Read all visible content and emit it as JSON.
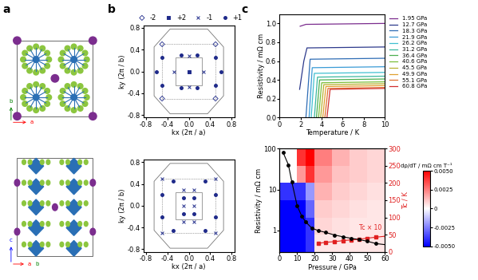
{
  "panel_labels": [
    "a",
    "b",
    "c"
  ],
  "structure": {
    "top_view_axes": [
      "a",
      "b"
    ],
    "side_view_axes": [
      "c",
      "a",
      "b"
    ]
  },
  "chart_data": [
    {
      "type": "scatter",
      "legend": "top",
      "x_label": "kx (2π / a)",
      "y_label": "ky (2π / b)",
      "xlim": [
        -0.85,
        0.85
      ],
      "ylim": [
        -0.85,
        0.85
      ],
      "xticks": [
        -0.8,
        -0.4,
        0.0,
        0.4,
        0.8
      ],
      "yticks": [
        -0.8,
        -0.4,
        0.0,
        0.4,
        0.8
      ],
      "series": [
        {
          "name": "-2",
          "marker": "diamond",
          "color": "#1f2a8a",
          "x": [
            -0.5,
            0.5,
            -0.5,
            0.5
          ],
          "y": [
            0.5,
            0.5,
            -0.5,
            -0.5
          ]
        },
        {
          "name": "+2",
          "marker": "square",
          "color": "#1f2a8a",
          "x": [
            0.0
          ],
          "y": [
            0.0
          ]
        },
        {
          "name": "-1",
          "marker": "cross",
          "color": "#1f2a8a",
          "x": [
            0.0,
            0.0,
            -0.28,
            0.28
          ],
          "y": [
            0.28,
            -0.28,
            0.0,
            0.0
          ]
        },
        {
          "name": "+1",
          "marker": "circle",
          "color": "#1f2a8a",
          "x": [
            -0.15,
            0.15,
            -0.15,
            0.15,
            -0.5,
            0.5,
            -0.5,
            0.5,
            -0.6,
            0.6
          ],
          "y": [
            0.3,
            0.3,
            -0.3,
            -0.3,
            0.25,
            0.25,
            -0.25,
            -0.25,
            0.0,
            0.0
          ]
        }
      ]
    },
    {
      "type": "scatter",
      "x_label": "kx (2π / a)",
      "y_label": "ky (2π / b)",
      "xlim": [
        -0.85,
        0.85
      ],
      "ylim": [
        -0.85,
        0.85
      ],
      "xticks": [
        -0.8,
        -0.4,
        0.0,
        0.4,
        0.8
      ],
      "yticks": [
        -0.8,
        -0.4,
        0.0,
        0.4,
        0.8
      ],
      "series": [
        {
          "marker": "cross",
          "color": "#1f2a8a",
          "x": [
            -0.5,
            0.5,
            -0.5,
            0.5,
            -0.1,
            0.1,
            -0.1,
            0.1,
            -0.1,
            0.1
          ],
          "y": [
            0.5,
            0.5,
            -0.5,
            -0.5,
            0.3,
            0.3,
            -0.3,
            -0.3,
            0.0,
            0.0
          ]
        },
        {
          "marker": "circle",
          "color": "#1f2a8a",
          "x": [
            -0.3,
            0.3,
            -0.3,
            0.3,
            -0.5,
            0.5,
            -0.5,
            0.5,
            -0.1,
            0.1,
            -0.1,
            0.1
          ],
          "y": [
            0.45,
            0.45,
            -0.45,
            -0.45,
            0.2,
            0.2,
            -0.2,
            -0.2,
            0.15,
            0.15,
            -0.15,
            -0.15
          ]
        }
      ]
    },
    {
      "type": "line",
      "legend": "right",
      "x_label": "Temperature / K",
      "y_label": "Resistivity / mΩ cm",
      "xlim": [
        0,
        10
      ],
      "ylim": [
        0,
        1.1
      ],
      "xticks": [
        0,
        2,
        4,
        6,
        8,
        10
      ],
      "yticks": [
        0.0,
        0.2,
        0.4,
        0.6,
        0.8,
        1.0
      ],
      "series": [
        {
          "name": "1.95 GPa",
          "color": "#7b2d8e",
          "x": [
            1.95,
            2.5,
            10
          ],
          "values": [
            0.97,
            0.99,
            1.0
          ]
        },
        {
          "name": "12.7 GPa",
          "color": "#2d3a8c",
          "x": [
            1.9,
            2.3,
            2.6,
            10
          ],
          "values": [
            0.3,
            0.6,
            0.74,
            0.75
          ]
        },
        {
          "name": "18.3 GPa",
          "color": "#2f6db5",
          "x": [
            2.5,
            2.9,
            10
          ],
          "values": [
            0.0,
            0.62,
            0.63
          ]
        },
        {
          "name": "21.9 GPa",
          "color": "#3a9bd6",
          "x": [
            2.8,
            3.1,
            10
          ],
          "values": [
            0.0,
            0.53,
            0.54
          ]
        },
        {
          "name": "26.2 GPa",
          "color": "#40c0d0",
          "x": [
            3.0,
            3.3,
            10
          ],
          "values": [
            0.0,
            0.47,
            0.48
          ]
        },
        {
          "name": "31.2 GPa",
          "color": "#3cb8a0",
          "x": [
            3.3,
            3.6,
            10
          ],
          "values": [
            0.0,
            0.43,
            0.44
          ]
        },
        {
          "name": "36.4 GPa",
          "color": "#4caf50",
          "x": [
            3.5,
            3.8,
            10
          ],
          "values": [
            0.0,
            0.4,
            0.41
          ]
        },
        {
          "name": "40.6 GPa",
          "color": "#7cbf3a",
          "x": [
            3.7,
            4.0,
            10
          ],
          "values": [
            0.0,
            0.37,
            0.38
          ]
        },
        {
          "name": "45.5 GPa",
          "color": "#b8b030",
          "x": [
            3.9,
            4.2,
            10
          ],
          "values": [
            0.0,
            0.35,
            0.36
          ]
        },
        {
          "name": "49.9 GPa",
          "color": "#e0a030",
          "x": [
            4.1,
            4.4,
            10
          ],
          "values": [
            0.0,
            0.33,
            0.34
          ]
        },
        {
          "name": "55.1 GPa",
          "color": "#e07030",
          "x": [
            4.3,
            4.6,
            10
          ],
          "values": [
            0.0,
            0.31,
            0.32
          ]
        },
        {
          "name": "60.8 GPa",
          "color": "#d03030",
          "x": [
            4.5,
            4.8,
            10
          ],
          "values": [
            0.0,
            0.3,
            0.31
          ]
        }
      ]
    },
    {
      "type": "line",
      "log": "y",
      "x_label": "Pressure / GPa",
      "y_label": "Resistivity / mΩ cm",
      "y2_label": "Tc / K",
      "annotation": "Tc × 10",
      "xlim": [
        0,
        60
      ],
      "ylim": [
        0.3,
        100
      ],
      "y2lim": [
        0,
        300
      ],
      "xticks": [
        0,
        10,
        20,
        30,
        40,
        50,
        60
      ],
      "yticks": [
        1,
        10,
        100
      ],
      "y2ticks": [
        0,
        50,
        100,
        150,
        200,
        250,
        300
      ],
      "series": [
        {
          "color": "#000000",
          "marker": "circle",
          "x": [
            1.95,
            5,
            7,
            10,
            12.7,
            15,
            18.3,
            21.9,
            26.2,
            31.2,
            36.4,
            40.6,
            45.5,
            49.9,
            55.1,
            60.8
          ],
          "values": [
            80,
            40,
            15,
            4,
            2.2,
            1.6,
            1.15,
            1.0,
            0.9,
            0.78,
            0.7,
            0.65,
            0.6,
            0.55,
            0.48,
            0.45
          ]
        },
        {
          "color": "#e02020",
          "marker": "square",
          "axis": "y2",
          "x": [
            21.9,
            26.2,
            31.2,
            36.4,
            40.6,
            45.5,
            49.9,
            55.1,
            60.8
          ],
          "values": [
            25,
            28,
            30,
            33,
            35,
            37,
            40,
            43,
            46
          ]
        }
      ],
      "heatmap": {
        "axis": "y2",
        "x_edges": [
          0,
          5,
          10,
          15,
          20,
          30,
          40,
          50,
          60
        ],
        "y_edges": [
          0,
          50,
          100,
          150,
          200,
          250,
          300
        ],
        "cells": [
          [
            -0.005,
            -0.005,
            -0.005,
            -0.004,
            0.0005,
            0.0005,
            0.0005,
            0.0005
          ],
          [
            -0.005,
            -0.005,
            -0.005,
            -0.004,
            0.0008,
            0.0006,
            0.0005,
            0.0005
          ],
          [
            -0.005,
            -0.005,
            -0.005,
            -0.003,
            0.001,
            0.0008,
            0.0006,
            0.0005
          ],
          [
            -0.004,
            -0.004,
            -0.004,
            -0.002,
            0.0015,
            0.001,
            0.0008,
            0.0006
          ],
          [
            0,
            0,
            0.002,
            0.004,
            0.002,
            0.0012,
            0.001,
            0.0008
          ],
          [
            0,
            0,
            0.004,
            0.005,
            0.0025,
            0.0015,
            0.001,
            0.0008
          ]
        ],
        "color_range": [
          -0.005,
          0.005
        ],
        "color_label": "dρ/dT / mΩ cm T⁻¹",
        "color_ticks": [
          {
            "value": -0.005,
            "label": "-0.0050"
          },
          {
            "value": -0.0025,
            "label": "-0.0025"
          },
          {
            "value": 0,
            "label": "0"
          },
          {
            "value": 0.0025,
            "label": "0.0025"
          },
          {
            "value": 0.005,
            "label": "0.0050"
          }
        ]
      }
    }
  ]
}
